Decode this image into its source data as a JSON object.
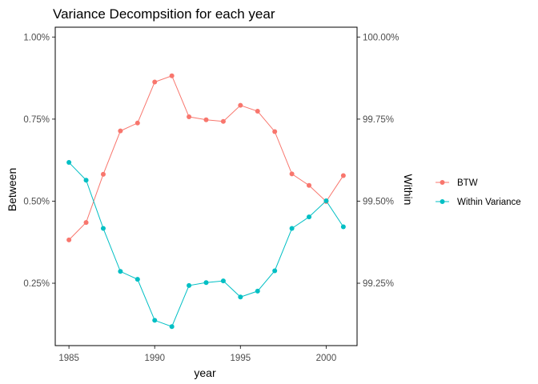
{
  "chart_data": {
    "type": "line",
    "title": "Variance Decompsition for each year",
    "xlabel": "year",
    "ylabel_left": "Between",
    "ylabel_right": "Within",
    "x": [
      1985,
      1986,
      1987,
      1988,
      1989,
      1990,
      1991,
      1992,
      1993,
      1994,
      1995,
      1996,
      1997,
      1998,
      1999,
      2000,
      2001
    ],
    "x_ticks": [
      1985,
      1990,
      1995,
      2000
    ],
    "x_tick_labels": [
      "1985",
      "1990",
      "1995",
      "2000"
    ],
    "xlim": [
      1984.2,
      2001.8
    ],
    "ylim_left": [
      0.06,
      1.03
    ],
    "y_ticks_left": [
      0.25,
      0.5,
      0.75,
      1.0
    ],
    "y_tick_labels_left": [
      "0.25%",
      "0.50%",
      "0.75%",
      "1.00%"
    ],
    "y_ticks_right": [
      99.25,
      99.5,
      99.75,
      100.0
    ],
    "y_tick_labels_right": [
      "99.25%",
      "99.50%",
      "99.75%",
      "100.00%"
    ],
    "grid": false,
    "legend_position": "right",
    "series": [
      {
        "name": "BTW",
        "axis": "left",
        "color": "#F8766D",
        "values": [
          0.382,
          0.435,
          0.582,
          0.714,
          0.738,
          0.863,
          0.882,
          0.757,
          0.748,
          0.743,
          0.792,
          0.774,
          0.712,
          0.583,
          0.548,
          0.499,
          0.578
        ]
      },
      {
        "name": "Within Variance",
        "axis": "right",
        "color": "#00BFC4",
        "values": [
          99.618,
          99.564,
          99.417,
          99.286,
          99.262,
          99.137,
          99.118,
          99.243,
          99.252,
          99.257,
          99.208,
          99.226,
          99.288,
          99.417,
          99.452,
          99.501,
          99.422
        ]
      }
    ]
  }
}
